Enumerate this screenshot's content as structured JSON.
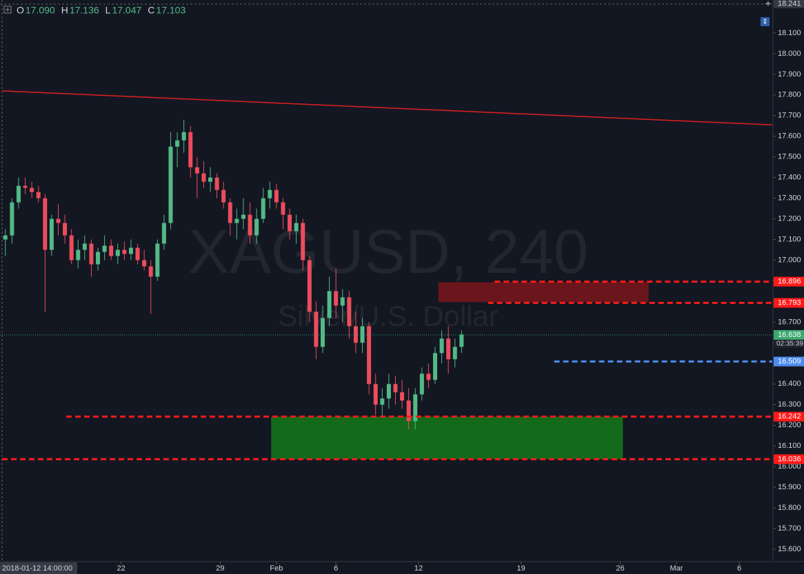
{
  "chart_data": {
    "type": "candlestick",
    "header": [
      {
        "label": "O",
        "value": "17.090"
      },
      {
        "label": "H",
        "value": "17.136"
      },
      {
        "label": "L",
        "value": "17.047"
      },
      {
        "label": "C",
        "value": "17.103"
      }
    ],
    "watermark": {
      "symbol": "XAGUSD, 240",
      "description": "Silver/U.S. Dollar"
    },
    "up_color": "#53b987",
    "down_color": "#eb4d5c",
    "xlim": [
      -0.5,
      116
    ],
    "ylim": [
      15.54,
      18.26
    ],
    "top_price": 18.241,
    "cursor_time": "2018-01-12 14:00:00",
    "xticks": [
      {
        "value": 17.5,
        "label": "22"
      },
      {
        "value": 32.5,
        "label": "29"
      },
      {
        "value": 41,
        "label": "Feb"
      },
      {
        "value": 50,
        "label": "6"
      },
      {
        "value": 62.5,
        "label": "12"
      },
      {
        "value": 78,
        "label": "19"
      },
      {
        "value": 93,
        "label": "26"
      },
      {
        "value": 101.5,
        "label": "Mar"
      },
      {
        "value": 111,
        "label": "6"
      }
    ],
    "yticks": [
      {
        "value": 15.6,
        "label": "15.600"
      },
      {
        "value": 15.7,
        "label": "15.700"
      },
      {
        "value": 15.8,
        "label": "15.800"
      },
      {
        "value": 15.9,
        "label": "15.900"
      },
      {
        "value": 16.0,
        "label": "16.000"
      },
      {
        "value": 16.1,
        "label": "16.100"
      },
      {
        "value": 16.2,
        "label": "16.200"
      },
      {
        "value": 16.3,
        "label": "16.300"
      },
      {
        "value": 16.4,
        "label": "16.400"
      },
      {
        "value": 16.5,
        "label": "16.500"
      },
      {
        "value": 16.6,
        "label": "16.600"
      },
      {
        "value": 16.7,
        "label": "16.700"
      },
      {
        "value": 16.8,
        "label": "16.800"
      },
      {
        "value": 16.9,
        "label": "16.900"
      },
      {
        "value": 17.0,
        "label": "17.000"
      },
      {
        "value": 17.1,
        "label": "17.100"
      },
      {
        "value": 17.2,
        "label": "17.200"
      },
      {
        "value": 17.3,
        "label": "17.300"
      },
      {
        "value": 17.4,
        "label": "17.400"
      },
      {
        "value": 17.5,
        "label": "17.500"
      },
      {
        "value": 17.6,
        "label": "17.600"
      },
      {
        "value": 17.7,
        "label": "17.700"
      },
      {
        "value": 17.8,
        "label": "17.800"
      },
      {
        "value": 17.9,
        "label": "17.900"
      },
      {
        "value": 18.0,
        "label": "18.000"
      },
      {
        "value": 18.1,
        "label": "18.100"
      }
    ],
    "ohlc": [
      [
        17.1,
        17.15,
        17.02,
        17.12
      ],
      [
        17.12,
        17.3,
        17.08,
        17.28
      ],
      [
        17.28,
        17.4,
        17.25,
        17.36
      ],
      [
        17.36,
        17.4,
        17.32,
        17.35
      ],
      [
        17.35,
        17.38,
        17.3,
        17.33
      ],
      [
        17.33,
        17.36,
        17.28,
        17.3
      ],
      [
        17.3,
        17.32,
        16.75,
        17.05
      ],
      [
        17.05,
        17.22,
        17.02,
        17.2
      ],
      [
        17.2,
        17.27,
        17.12,
        17.18
      ],
      [
        17.18,
        17.22,
        17.08,
        17.12
      ],
      [
        17.12,
        17.15,
        16.98,
        17.0
      ],
      [
        17.0,
        17.1,
        16.96,
        17.05
      ],
      [
        17.05,
        17.12,
        17.0,
        17.08
      ],
      [
        17.08,
        17.1,
        16.92,
        16.98
      ],
      [
        16.98,
        17.06,
        16.95,
        17.04
      ],
      [
        17.04,
        17.12,
        17.0,
        17.07
      ],
      [
        17.07,
        17.1,
        17.0,
        17.02
      ],
      [
        17.02,
        17.08,
        16.98,
        17.05
      ],
      [
        17.05,
        17.09,
        17.0,
        17.03
      ],
      [
        17.03,
        17.1,
        17.0,
        17.06
      ],
      [
        17.06,
        17.08,
        16.98,
        17.0
      ],
      [
        17.0,
        17.05,
        16.95,
        16.97
      ],
      [
        16.97,
        17.0,
        16.74,
        16.92
      ],
      [
        16.92,
        17.1,
        16.9,
        17.08
      ],
      [
        17.08,
        17.22,
        17.05,
        17.18
      ],
      [
        17.18,
        17.62,
        17.15,
        17.55
      ],
      [
        17.55,
        17.62,
        17.45,
        17.58
      ],
      [
        17.58,
        17.68,
        17.52,
        17.62
      ],
      [
        17.62,
        17.65,
        17.4,
        17.45
      ],
      [
        17.45,
        17.5,
        17.3,
        17.42
      ],
      [
        17.42,
        17.48,
        17.35,
        17.38
      ],
      [
        17.38,
        17.45,
        17.33,
        17.4
      ],
      [
        17.4,
        17.42,
        17.3,
        17.34
      ],
      [
        17.34,
        17.38,
        17.25,
        17.28
      ],
      [
        17.28,
        17.3,
        17.12,
        17.18
      ],
      [
        17.18,
        17.25,
        17.1,
        17.2
      ],
      [
        17.2,
        17.3,
        17.15,
        17.22
      ],
      [
        17.22,
        17.28,
        17.08,
        17.12
      ],
      [
        17.12,
        17.25,
        17.08,
        17.2
      ],
      [
        17.2,
        17.35,
        17.18,
        17.3
      ],
      [
        17.3,
        17.38,
        17.25,
        17.34
      ],
      [
        17.34,
        17.37,
        17.25,
        17.28
      ],
      [
        17.28,
        17.3,
        17.15,
        17.22
      ],
      [
        17.22,
        17.25,
        17.1,
        17.14
      ],
      [
        17.14,
        17.22,
        17.08,
        17.18
      ],
      [
        17.18,
        17.2,
        16.95,
        17.0
      ],
      [
        17.0,
        17.02,
        16.7,
        16.75
      ],
      [
        16.75,
        16.8,
        16.52,
        16.58
      ],
      [
        16.58,
        16.78,
        16.55,
        16.72
      ],
      [
        16.72,
        16.92,
        16.68,
        16.85
      ],
      [
        16.85,
        16.96,
        16.72,
        16.78
      ],
      [
        16.78,
        16.86,
        16.7,
        16.82
      ],
      [
        16.82,
        16.85,
        16.62,
        16.68
      ],
      [
        16.68,
        16.75,
        16.55,
        16.6
      ],
      [
        16.6,
        16.72,
        16.55,
        16.68
      ],
      [
        16.68,
        16.7,
        16.35,
        16.4
      ],
      [
        16.4,
        16.45,
        16.25,
        16.3
      ],
      [
        16.3,
        16.38,
        16.24,
        16.33
      ],
      [
        16.33,
        16.45,
        16.28,
        16.4
      ],
      [
        16.4,
        16.44,
        16.3,
        16.36
      ],
      [
        16.36,
        16.42,
        16.28,
        16.32
      ],
      [
        16.32,
        16.38,
        16.18,
        16.22
      ],
      [
        16.22,
        16.38,
        16.18,
        16.35
      ],
      [
        16.35,
        16.48,
        16.32,
        16.45
      ],
      [
        16.45,
        16.5,
        16.38,
        16.42
      ],
      [
        16.42,
        16.58,
        16.4,
        16.55
      ],
      [
        16.55,
        16.66,
        16.5,
        16.62
      ],
      [
        16.62,
        16.68,
        16.45,
        16.52
      ],
      [
        16.52,
        16.62,
        16.48,
        16.58
      ],
      [
        16.58,
        16.66,
        16.55,
        16.64
      ]
    ],
    "trendline": {
      "start": [
        -0.5,
        17.82
      ],
      "end": [
        116,
        17.655
      ],
      "color": "#e0201f"
    },
    "zones": [
      {
        "x": [
          65.5,
          97.3
        ],
        "y": [
          16.797,
          16.893
        ],
        "color": "#6b161c"
      },
      {
        "x": [
          40.2,
          93.4
        ],
        "y": [
          16.036,
          16.242
        ],
        "color": "#136a1b"
      }
    ],
    "levels": [
      {
        "value": 16.896,
        "start": 74,
        "color": "#ff1a1a"
      },
      {
        "value": 16.793,
        "start": 73,
        "color": "#ff1a1a"
      },
      {
        "value": 16.509,
        "start": 83,
        "color": "#4c8cf0"
      },
      {
        "value": 16.242,
        "start": 9.2,
        "color": "#ff1a1a"
      },
      {
        "value": 16.036,
        "start": -0.5,
        "color": "#ff1a1a"
      }
    ],
    "last_price": {
      "value": 16.638,
      "countdown": "02:35:39",
      "color": "#3ca870"
    }
  }
}
